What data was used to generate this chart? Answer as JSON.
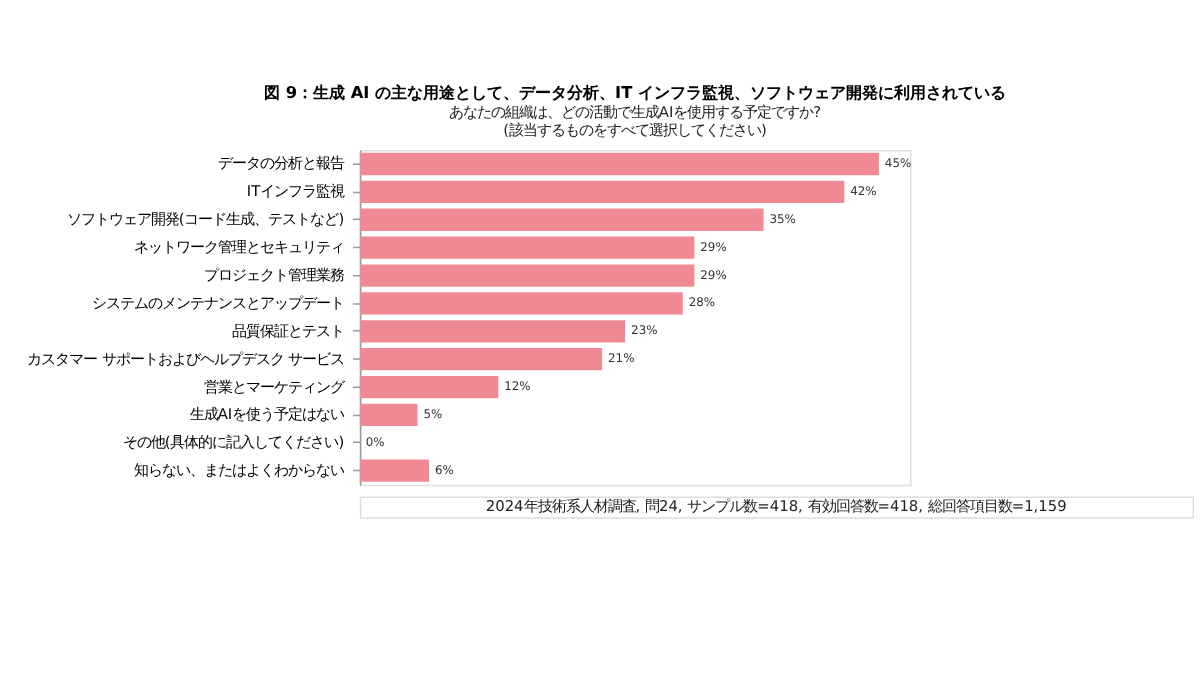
{
  "chart_data": {
    "type": "bar",
    "orientation": "horizontal",
    "title": "図 9：生成 AI の主な用途として、データ分析、IT インフラ監視、ソフトウェア開発に利用されている",
    "subtitle": "あなたの組織は、どの活動で生成AIを使用する予定ですか?\n(該当するものをすべて選択してください)",
    "categories": [
      "データの分析と報告",
      "ITインフラ監視",
      "ソフトウェア開発(コード生成、テストなど)",
      "ネットワーク管理とセキュリティ",
      "プロジェクト管理業務",
      "システムのメンテナンスとアップデート",
      "品質保証とテスト",
      "カスタマー サポートおよびヘルプデスク サービス",
      "営業とマーケティング",
      "生成AIを使う予定はない",
      "その他(具体的に記入してください)",
      "知らない、またはよくわからない"
    ],
    "values": [
      45,
      42,
      35,
      29,
      29,
      28,
      23,
      21,
      12,
      5,
      0,
      6
    ],
    "value_labels": [
      "45%",
      "42%",
      "35%",
      "29%",
      "29%",
      "28%",
      "23%",
      "21%",
      "12%",
      "5%",
      "0%",
      "6%"
    ],
    "color": "#ef8a94",
    "tick_labels": "y",
    "annotations": [
      "2024年技術系人材調査, 問24, サンプル数=418, 有効回答数=418, 総回答項目数=1,159"
    ]
  }
}
